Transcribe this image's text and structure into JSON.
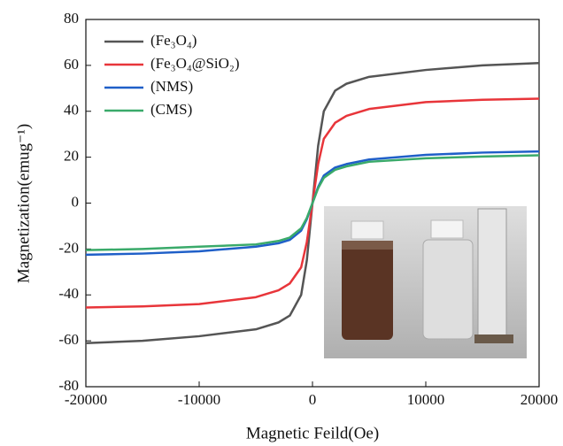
{
  "chart_data": {
    "type": "line",
    "x_label": "Magnetic Feild(Oe)",
    "y_label": "Magnetization(emug⁻¹)",
    "x": [
      -20000,
      -15000,
      -10000,
      -5000,
      -3000,
      -2000,
      -1000,
      -500,
      0,
      500,
      1000,
      2000,
      3000,
      5000,
      10000,
      15000,
      20000
    ],
    "series": [
      {
        "name": "(Fe₃O₄)",
        "color": "#555555",
        "values": [
          -61,
          -60,
          -58,
          -55,
          -52,
          -49,
          -40,
          -25,
          0,
          25,
          40,
          49,
          52,
          55,
          58,
          60,
          61
        ]
      },
      {
        "name": "(Fe₃O₄@SiO₂)",
        "color": "#e8353a",
        "values": [
          -45.5,
          -45,
          -44,
          -41,
          -38,
          -35,
          -28,
          -17,
          0,
          17,
          28,
          35,
          38,
          41,
          44,
          45,
          45.5
        ]
      },
      {
        "name": "(NMS)",
        "color": "#1f5fc8",
        "values": [
          -22.5,
          -22,
          -21,
          -19,
          -17.5,
          -16,
          -12,
          -7,
          0,
          7,
          12,
          15.5,
          17,
          19,
          21,
          22,
          22.5
        ]
      },
      {
        "name": "(CMS)",
        "color": "#3aaa6a",
        "values": [
          -20.5,
          -20,
          -19,
          -18,
          -16.5,
          -15,
          -11,
          -6.5,
          0,
          6.5,
          11,
          14.5,
          16,
          18,
          19.5,
          20.3,
          20.8
        ]
      }
    ],
    "xlim": [
      -20000,
      20000
    ],
    "xticks": [
      -20000,
      -10000,
      0,
      10000,
      20000
    ],
    "ylim": [
      -80,
      80
    ],
    "yticks": [
      -80,
      -60,
      -40,
      -20,
      0,
      20,
      40,
      60,
      80
    ],
    "grid": false
  }
}
